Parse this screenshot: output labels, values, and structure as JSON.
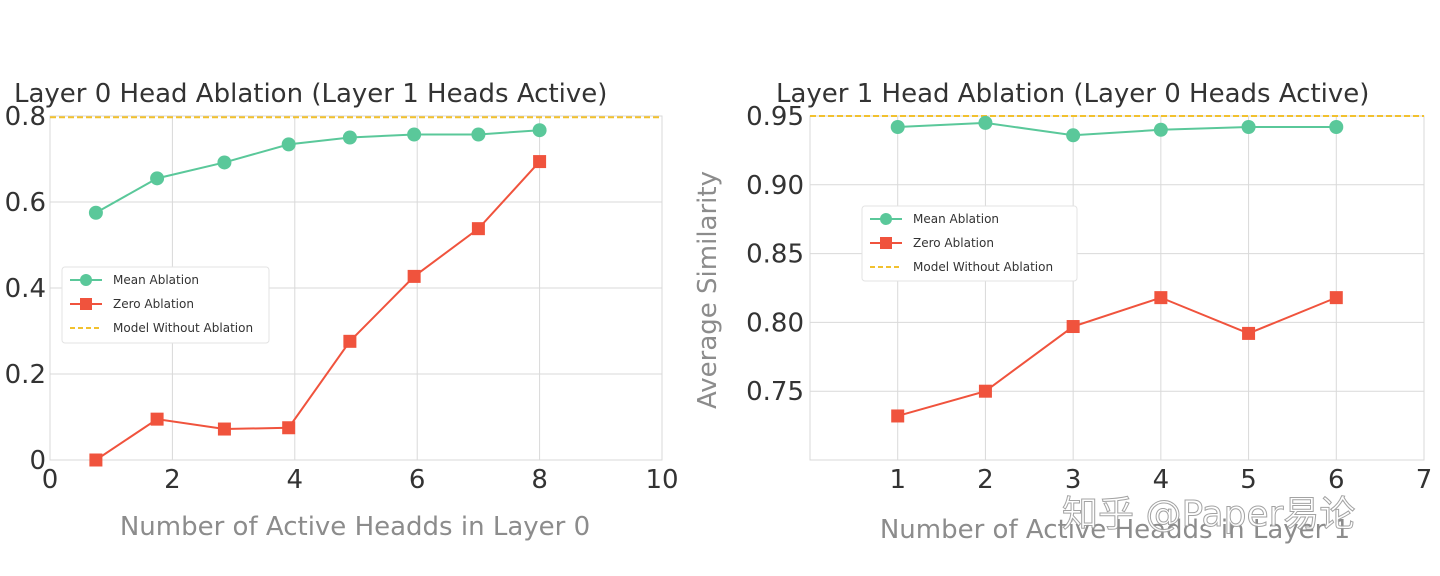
{
  "watermark": "知乎 @Paper易论",
  "colors": {
    "mean": "#5ac89a",
    "zero": "#f0533d",
    "baseline": "#f2c12e",
    "grid": "#d9d9d9"
  },
  "chart_data": [
    {
      "type": "line",
      "title": "Layer 0 Head Ablation (Layer 1 Heads Active)",
      "xlabel": "Number of Active Headds in Layer 0",
      "ylabel": "",
      "xlim": [
        0,
        10
      ],
      "ylim": [
        0,
        0.8
      ],
      "xticks": [
        0,
        2,
        4,
        6,
        8,
        10
      ],
      "xtick_labels": [
        "0",
        "2",
        "4",
        "6",
        "8",
        "10"
      ],
      "yticks": [
        0,
        0.2,
        0.4,
        0.6,
        0.8
      ],
      "ytick_labels": [
        "0",
        "0.2",
        "0.4",
        "0.6",
        "0.8"
      ],
      "grid": true,
      "legend_position": "center-left",
      "series": [
        {
          "name": "Mean Ablation",
          "marker": "circle",
          "x": [
            0.75,
            1.75,
            2.85,
            3.9,
            4.9,
            5.95,
            7.0,
            8.0
          ],
          "y": [
            0.575,
            0.655,
            0.692,
            0.734,
            0.75,
            0.757,
            0.757,
            0.767
          ]
        },
        {
          "name": "Zero Ablation",
          "marker": "square",
          "x": [
            0.75,
            1.75,
            2.85,
            3.9,
            4.9,
            5.95,
            7.0,
            8.0
          ],
          "y": [
            0.0,
            0.095,
            0.072,
            0.075,
            0.276,
            0.427,
            0.538,
            0.694
          ]
        },
        {
          "name": "Model Without Ablation",
          "style": "dashed",
          "y": 0.797
        }
      ]
    },
    {
      "type": "line",
      "title": "Layer 1 Head Ablation (Layer 0 Heads Active)",
      "xlabel": "Number of Active Headds in Layer 1",
      "ylabel": "Average Similarity",
      "xlim": [
        0,
        7
      ],
      "ylim": [
        0.7,
        0.95
      ],
      "xticks": [
        1,
        2,
        3,
        4,
        5,
        6,
        7
      ],
      "xtick_labels": [
        "1",
        "2",
        "3",
        "4",
        "5",
        "6",
        "7"
      ],
      "yticks": [
        0.75,
        0.8,
        0.85,
        0.9,
        0.95
      ],
      "ytick_labels": [
        "0.75",
        "0.80",
        "0.85",
        "0.90",
        "0.95"
      ],
      "grid": true,
      "legend_position": "center-left",
      "series": [
        {
          "name": "Mean Ablation",
          "marker": "circle",
          "x": [
            1,
            2,
            3,
            4,
            5,
            6
          ],
          "y": [
            0.942,
            0.945,
            0.936,
            0.94,
            0.942,
            0.942
          ]
        },
        {
          "name": "Zero Ablation",
          "marker": "square",
          "x": [
            1,
            2,
            3,
            4,
            5,
            6
          ],
          "y": [
            0.732,
            0.75,
            0.797,
            0.818,
            0.792,
            0.818
          ]
        },
        {
          "name": "Model Without Ablation",
          "style": "dashed",
          "y": 0.95
        }
      ]
    }
  ]
}
